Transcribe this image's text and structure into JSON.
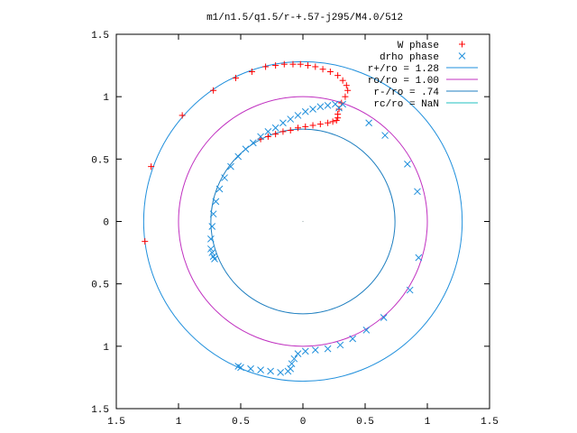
{
  "chart_data": {
    "type": "scatter",
    "title": "m1/n1.5/q1.5/r-+.57-j295/M4.0/512",
    "xlabel": "",
    "ylabel": "",
    "xlim": [
      -1.5,
      1.5
    ],
    "ylim": [
      -1.5,
      1.5
    ],
    "x_tick_values": [
      -1.5,
      -1,
      -0.5,
      0,
      0.5,
      1,
      1.5
    ],
    "x_tick_labels": [
      "1.5",
      "1",
      "0.5",
      "0",
      "0.5",
      "1",
      "1.5"
    ],
    "y_tick_values": [
      1.5,
      1,
      0.5,
      0,
      -0.5,
      -1,
      -1.5
    ],
    "y_tick_labels": [
      "1.5",
      "1",
      "0.5",
      "0",
      "0.5",
      "1",
      "1.5"
    ],
    "grid": false,
    "legend_position": "top-right",
    "series": [
      {
        "name": "W phase",
        "marker": "plus",
        "color": "#ff0000",
        "x": [
          -1.27,
          -1.22,
          -0.97,
          -0.72,
          -0.54,
          -0.41,
          -0.3,
          -0.22,
          -0.15,
          -0.08,
          -0.02,
          0.04,
          0.1,
          0.16,
          0.22,
          0.28,
          0.32,
          0.35,
          0.36,
          0.34,
          0.31,
          0.29,
          0.28,
          0.28,
          0.27,
          0.24,
          0.2,
          0.14,
          0.08,
          0.02,
          -0.04,
          -0.1,
          -0.16,
          -0.22,
          -0.28,
          -0.34
        ],
        "y": [
          -0.16,
          0.44,
          0.85,
          1.05,
          1.15,
          1.2,
          1.24,
          1.25,
          1.26,
          1.26,
          1.26,
          1.25,
          1.24,
          1.22,
          1.2,
          1.17,
          1.13,
          1.09,
          1.05,
          1.0,
          0.95,
          0.9,
          0.86,
          0.83,
          0.81,
          0.8,
          0.79,
          0.78,
          0.77,
          0.76,
          0.75,
          0.73,
          0.72,
          0.7,
          0.68,
          0.66
        ]
      },
      {
        "name": "drho phase",
        "marker": "x",
        "color": "#1f8fdc",
        "x": [
          0.32,
          0.26,
          0.2,
          0.14,
          0.08,
          0.02,
          -0.04,
          -0.1,
          -0.16,
          -0.22,
          -0.28,
          -0.34,
          -0.4,
          -0.46,
          -0.52,
          -0.58,
          -0.63,
          -0.67,
          -0.7,
          -0.72,
          -0.73,
          -0.74,
          -0.74,
          -0.73,
          -0.72,
          -0.71,
          0.29,
          0.53,
          0.66,
          0.84,
          0.92,
          0.93,
          0.86,
          0.65,
          0.51,
          0.4,
          0.3,
          0.2,
          0.1,
          0.02,
          -0.04,
          -0.07,
          -0.09,
          -0.1,
          -0.12,
          -0.18,
          -0.26,
          -0.34,
          -0.42,
          -0.5,
          -0.52
        ],
        "y": [
          0.94,
          0.94,
          0.93,
          0.92,
          0.9,
          0.88,
          0.85,
          0.82,
          0.79,
          0.75,
          0.72,
          0.68,
          0.63,
          0.58,
          0.52,
          0.44,
          0.35,
          0.26,
          0.16,
          0.06,
          -0.04,
          -0.14,
          -0.22,
          -0.25,
          -0.28,
          -0.3,
          0.91,
          0.79,
          0.69,
          0.46,
          0.24,
          -0.29,
          -0.55,
          -0.77,
          -0.87,
          -0.94,
          -0.99,
          -1.02,
          -1.03,
          -1.04,
          -1.06,
          -1.1,
          -1.14,
          -1.18,
          -1.2,
          -1.21,
          -1.2,
          -1.19,
          -1.18,
          -1.17,
          -1.16
        ]
      },
      {
        "name": "r+/ro = 1.28",
        "type": "circle",
        "radius": 1.28,
        "color": "#1f8fdc"
      },
      {
        "name": "ro/ro = 1.00",
        "type": "circle",
        "radius": 1.0,
        "color": "#c030c0"
      },
      {
        "name": "r-/ro = .74",
        "type": "circle",
        "radius": 0.74,
        "color": "#1f7fc0"
      },
      {
        "name": "rc/ro = NaN",
        "type": "circle",
        "radius": null,
        "color": "#20c0c0"
      }
    ]
  }
}
